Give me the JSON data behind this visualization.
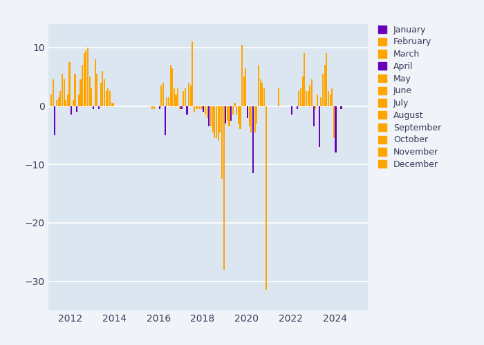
{
  "fig_background": "#f0f4f8",
  "plot_background": "#dce6f0",
  "purple_color": "#6600BB",
  "orange_color": "#FFA500",
  "months": [
    "January",
    "February",
    "March",
    "April",
    "May",
    "June",
    "July",
    "August",
    "September",
    "October",
    "November",
    "December"
  ],
  "month_is_purple": [
    true,
    false,
    false,
    true,
    false,
    false,
    false,
    false,
    false,
    false,
    false,
    false
  ],
  "ylim": [
    -35,
    14
  ],
  "xlim_start": 2011.0,
  "xlim_end": 2025.5,
  "yticks": [
    -30,
    -20,
    -10,
    0,
    10
  ],
  "xticks": [
    2012,
    2014,
    2016,
    2018,
    2020,
    2022,
    2024
  ],
  "data": [
    {
      "year": 2011,
      "month": 2,
      "value": 2.0
    },
    {
      "year": 2011,
      "month": 3,
      "value": 4.5
    },
    {
      "year": 2011,
      "month": 4,
      "value": -5.0
    },
    {
      "year": 2011,
      "month": 5,
      "value": 1.0
    },
    {
      "year": 2011,
      "month": 6,
      "value": 1.5
    },
    {
      "year": 2011,
      "month": 7,
      "value": 2.5
    },
    {
      "year": 2011,
      "month": 8,
      "value": 5.5
    },
    {
      "year": 2011,
      "month": 9,
      "value": 4.5
    },
    {
      "year": 2011,
      "month": 10,
      "value": 1.0
    },
    {
      "year": 2011,
      "month": 11,
      "value": 2.0
    },
    {
      "year": 2011,
      "month": 12,
      "value": 7.5
    },
    {
      "year": 2012,
      "month": 1,
      "value": -1.5
    },
    {
      "year": 2012,
      "month": 2,
      "value": 1.0
    },
    {
      "year": 2012,
      "month": 3,
      "value": 5.5
    },
    {
      "year": 2012,
      "month": 4,
      "value": -1.0
    },
    {
      "year": 2012,
      "month": 5,
      "value": 2.0
    },
    {
      "year": 2012,
      "month": 6,
      "value": 4.5
    },
    {
      "year": 2012,
      "month": 7,
      "value": 7.0
    },
    {
      "year": 2012,
      "month": 8,
      "value": 9.0
    },
    {
      "year": 2012,
      "month": 9,
      "value": 9.5
    },
    {
      "year": 2012,
      "month": 10,
      "value": 10.0
    },
    {
      "year": 2012,
      "month": 11,
      "value": 5.0
    },
    {
      "year": 2012,
      "month": 12,
      "value": 3.0
    },
    {
      "year": 2013,
      "month": 1,
      "value": -0.5
    },
    {
      "year": 2013,
      "month": 2,
      "value": 8.0
    },
    {
      "year": 2013,
      "month": 3,
      "value": 5.5
    },
    {
      "year": 2013,
      "month": 4,
      "value": -0.5
    },
    {
      "year": 2013,
      "month": 5,
      "value": 4.0
    },
    {
      "year": 2013,
      "month": 6,
      "value": 6.0
    },
    {
      "year": 2013,
      "month": 7,
      "value": 4.5
    },
    {
      "year": 2013,
      "month": 8,
      "value": 2.5
    },
    {
      "year": 2013,
      "month": 9,
      "value": 3.0
    },
    {
      "year": 2013,
      "month": 10,
      "value": 2.5
    },
    {
      "year": 2013,
      "month": 11,
      "value": 0.5
    },
    {
      "year": 2013,
      "month": 12,
      "value": 0.5
    },
    {
      "year": 2015,
      "month": 9,
      "value": -0.5
    },
    {
      "year": 2015,
      "month": 10,
      "value": -0.5
    },
    {
      "year": 2016,
      "month": 1,
      "value": -0.5
    },
    {
      "year": 2016,
      "month": 2,
      "value": 3.5
    },
    {
      "year": 2016,
      "month": 3,
      "value": 4.0
    },
    {
      "year": 2016,
      "month": 4,
      "value": -5.0
    },
    {
      "year": 2016,
      "month": 5,
      "value": 1.5
    },
    {
      "year": 2016,
      "month": 6,
      "value": 1.5
    },
    {
      "year": 2016,
      "month": 7,
      "value": 7.0
    },
    {
      "year": 2016,
      "month": 8,
      "value": 6.5
    },
    {
      "year": 2016,
      "month": 9,
      "value": 3.0
    },
    {
      "year": 2016,
      "month": 10,
      "value": 2.0
    },
    {
      "year": 2016,
      "month": 11,
      "value": 3.0
    },
    {
      "year": 2016,
      "month": 12,
      "value": -0.5
    },
    {
      "year": 2017,
      "month": 1,
      "value": -0.5
    },
    {
      "year": 2017,
      "month": 2,
      "value": 2.5
    },
    {
      "year": 2017,
      "month": 3,
      "value": 3.0
    },
    {
      "year": 2017,
      "month": 4,
      "value": -1.5
    },
    {
      "year": 2017,
      "month": 5,
      "value": 4.0
    },
    {
      "year": 2017,
      "month": 6,
      "value": 3.5
    },
    {
      "year": 2017,
      "month": 7,
      "value": 11.0
    },
    {
      "year": 2017,
      "month": 8,
      "value": -1.0
    },
    {
      "year": 2017,
      "month": 9,
      "value": -0.5
    },
    {
      "year": 2017,
      "month": 10,
      "value": -0.5
    },
    {
      "year": 2017,
      "month": 11,
      "value": -0.5
    },
    {
      "year": 2017,
      "month": 12,
      "value": -0.5
    },
    {
      "year": 2018,
      "month": 1,
      "value": -1.0
    },
    {
      "year": 2018,
      "month": 2,
      "value": -1.5
    },
    {
      "year": 2018,
      "month": 3,
      "value": -2.0
    },
    {
      "year": 2018,
      "month": 4,
      "value": -3.5
    },
    {
      "year": 2018,
      "month": 5,
      "value": -3.5
    },
    {
      "year": 2018,
      "month": 6,
      "value": -4.5
    },
    {
      "year": 2018,
      "month": 7,
      "value": -5.5
    },
    {
      "year": 2018,
      "month": 8,
      "value": -5.5
    },
    {
      "year": 2018,
      "month": 9,
      "value": -6.0
    },
    {
      "year": 2018,
      "month": 10,
      "value": -4.5
    },
    {
      "year": 2018,
      "month": 11,
      "value": -12.5
    },
    {
      "year": 2018,
      "month": 12,
      "value": -28.0
    },
    {
      "year": 2019,
      "month": 1,
      "value": -3.0
    },
    {
      "year": 2019,
      "month": 2,
      "value": -2.5
    },
    {
      "year": 2019,
      "month": 3,
      "value": -3.5
    },
    {
      "year": 2019,
      "month": 4,
      "value": -2.5
    },
    {
      "year": 2019,
      "month": 5,
      "value": -1.5
    },
    {
      "year": 2019,
      "month": 6,
      "value": 0.5
    },
    {
      "year": 2019,
      "month": 7,
      "value": -1.5
    },
    {
      "year": 2019,
      "month": 8,
      "value": -3.0
    },
    {
      "year": 2019,
      "month": 9,
      "value": -4.0
    },
    {
      "year": 2019,
      "month": 10,
      "value": 10.5
    },
    {
      "year": 2019,
      "month": 11,
      "value": 5.0
    },
    {
      "year": 2019,
      "month": 12,
      "value": 6.5
    },
    {
      "year": 2020,
      "month": 1,
      "value": -2.0
    },
    {
      "year": 2020,
      "month": 2,
      "value": -3.5
    },
    {
      "year": 2020,
      "month": 3,
      "value": -4.5
    },
    {
      "year": 2020,
      "month": 4,
      "value": -11.5
    },
    {
      "year": 2020,
      "month": 5,
      "value": -4.5
    },
    {
      "year": 2020,
      "month": 6,
      "value": -3.0
    },
    {
      "year": 2020,
      "month": 7,
      "value": 7.0
    },
    {
      "year": 2020,
      "month": 8,
      "value": 4.5
    },
    {
      "year": 2020,
      "month": 9,
      "value": 4.0
    },
    {
      "year": 2020,
      "month": 10,
      "value": 3.0
    },
    {
      "year": 2020,
      "month": 11,
      "value": -31.5
    },
    {
      "year": 2021,
      "month": 6,
      "value": 3.0
    },
    {
      "year": 2022,
      "month": 1,
      "value": -1.5
    },
    {
      "year": 2022,
      "month": 4,
      "value": -0.5
    },
    {
      "year": 2022,
      "month": 5,
      "value": 2.5
    },
    {
      "year": 2022,
      "month": 6,
      "value": 3.0
    },
    {
      "year": 2022,
      "month": 7,
      "value": 5.0
    },
    {
      "year": 2022,
      "month": 8,
      "value": 9.0
    },
    {
      "year": 2022,
      "month": 9,
      "value": 2.5
    },
    {
      "year": 2022,
      "month": 10,
      "value": 2.5
    },
    {
      "year": 2022,
      "month": 11,
      "value": 3.5
    },
    {
      "year": 2022,
      "month": 12,
      "value": 4.5
    },
    {
      "year": 2023,
      "month": 1,
      "value": -3.5
    },
    {
      "year": 2023,
      "month": 2,
      "value": -0.5
    },
    {
      "year": 2023,
      "month": 3,
      "value": 2.0
    },
    {
      "year": 2023,
      "month": 4,
      "value": -7.0
    },
    {
      "year": 2023,
      "month": 5,
      "value": 1.5
    },
    {
      "year": 2023,
      "month": 6,
      "value": 5.5
    },
    {
      "year": 2023,
      "month": 7,
      "value": 7.0
    },
    {
      "year": 2023,
      "month": 8,
      "value": 9.0
    },
    {
      "year": 2023,
      "month": 9,
      "value": 2.5
    },
    {
      "year": 2023,
      "month": 10,
      "value": 2.0
    },
    {
      "year": 2023,
      "month": 11,
      "value": 3.0
    },
    {
      "year": 2023,
      "month": 12,
      "value": -5.5
    },
    {
      "year": 2024,
      "month": 1,
      "value": -8.0
    },
    {
      "year": 2024,
      "month": 4,
      "value": -0.5
    }
  ]
}
